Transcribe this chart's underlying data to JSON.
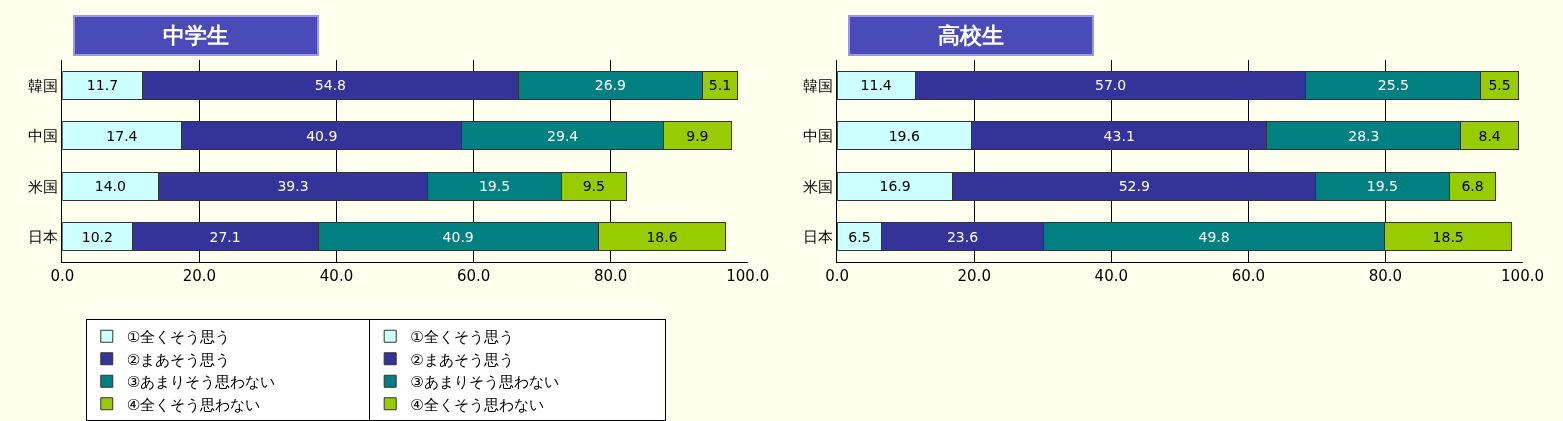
{
  "chart_data": [
    {
      "type": "bar",
      "orientation": "horizontal",
      "stacked": true,
      "title": "中学生",
      "categories": [
        "韓国",
        "中国",
        "米国",
        "日本"
      ],
      "series": [
        {
          "name": "①全くそう思う",
          "color": "#ccffff",
          "values": [
            11.7,
            17.4,
            14.0,
            10.2
          ],
          "value_labels": [
            "11.7",
            "17.4",
            "14.0",
            "10.2"
          ]
        },
        {
          "name": "②まあそう思う",
          "color": "#333399",
          "values": [
            54.8,
            40.9,
            39.3,
            27.1
          ],
          "value_labels": [
            "54.8",
            "40.9",
            "39.3",
            "27.1"
          ]
        },
        {
          "name": "③あまりそう思わない",
          "color": "#008080",
          "values": [
            26.9,
            29.4,
            19.5,
            40.9
          ],
          "value_labels": [
            "26.9",
            "29.4",
            "19.5",
            "40.9"
          ]
        },
        {
          "name": "④全くそう思わない",
          "color": "#99cc00",
          "values": [
            5.1,
            9.9,
            9.5,
            18.6
          ],
          "value_labels": [
            "5.1",
            "9.9",
            "9.5",
            "18.6"
          ]
        }
      ],
      "xlim": [
        0,
        100
      ],
      "xticks": [
        {
          "value": 0,
          "label": "0.0"
        },
        {
          "value": 20,
          "label": "20.0"
        },
        {
          "value": 40,
          "label": "40.0"
        },
        {
          "value": 60,
          "label": "60.0"
        },
        {
          "value": 80,
          "label": "80.0"
        },
        {
          "value": 100,
          "label": "100.0"
        }
      ],
      "grid": "x",
      "legend": "bottom"
    },
    {
      "type": "bar",
      "orientation": "horizontal",
      "stacked": true,
      "title": "高校生",
      "categories": [
        "韓国",
        "中国",
        "米国",
        "日本"
      ],
      "series": [
        {
          "name": "①全くそう思う",
          "color": "#ccffff",
          "values": [
            11.4,
            19.6,
            16.9,
            6.5
          ],
          "value_labels": [
            "11.4",
            "19.6",
            "16.9",
            "6.5"
          ]
        },
        {
          "name": "②まあそう思う",
          "color": "#333399",
          "values": [
            57.0,
            43.1,
            52.9,
            23.6
          ],
          "value_labels": [
            "57.0",
            "43.1",
            "52.9",
            "23.6"
          ]
        },
        {
          "name": "③あまりそう思わない",
          "color": "#008080",
          "values": [
            25.5,
            28.3,
            19.5,
            49.8
          ],
          "value_labels": [
            "25.5",
            "28.3",
            "19.5",
            "49.8"
          ]
        },
        {
          "name": "④全くそう思わない",
          "color": "#99cc00",
          "values": [
            5.5,
            8.4,
            6.8,
            18.5
          ],
          "value_labels": [
            "5.5",
            "8.4",
            "6.8",
            "18.5"
          ]
        }
      ],
      "xlim": [
        0,
        100
      ],
      "xticks": [
        {
          "value": 0,
          "label": "0.0"
        },
        {
          "value": 20,
          "label": "20.0"
        },
        {
          "value": 40,
          "label": "40.0"
        },
        {
          "value": 60,
          "label": "60.0"
        },
        {
          "value": 80,
          "label": "80.0"
        },
        {
          "value": 100,
          "label": "100.0"
        }
      ],
      "grid": "x",
      "legend": "bottom"
    }
  ]
}
